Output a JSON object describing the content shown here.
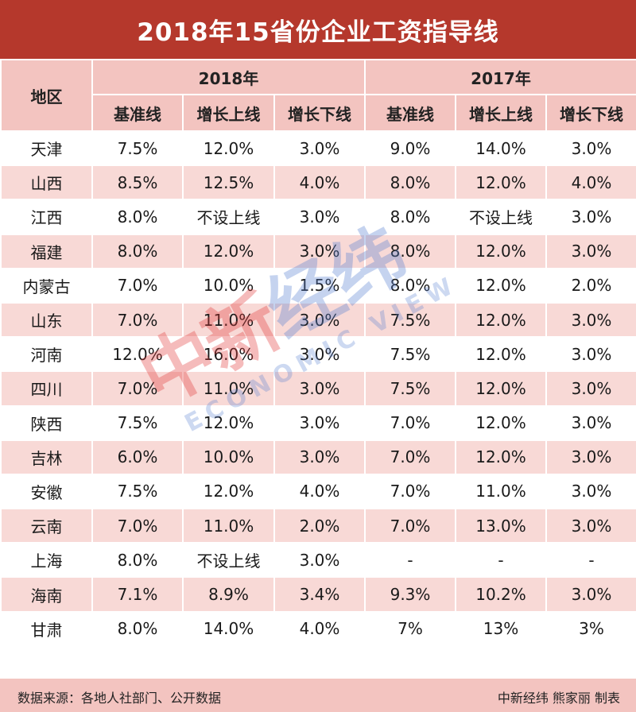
{
  "title": "2018年15省份企业工资指导线",
  "header": {
    "region_label": "地区",
    "years": [
      "2018年",
      "2017年"
    ],
    "subcols": [
      "基准线",
      "增长上线",
      "增长下线",
      "基准线",
      "增长上线",
      "增长下线"
    ]
  },
  "rows": [
    {
      "region": "天津",
      "cells": [
        "7.5%",
        "12.0%",
        "3.0%",
        "9.0%",
        "14.0%",
        "3.0%"
      ]
    },
    {
      "region": "山西",
      "cells": [
        "8.5%",
        "12.5%",
        "4.0%",
        "8.0%",
        "12.0%",
        "4.0%"
      ]
    },
    {
      "region": "江西",
      "cells": [
        "8.0%",
        "不设上线",
        "3.0%",
        "8.0%",
        "不设上线",
        "3.0%"
      ]
    },
    {
      "region": "福建",
      "cells": [
        "8.0%",
        "12.0%",
        "3.0%",
        "8.0%",
        "12.0%",
        "3.0%"
      ]
    },
    {
      "region": "内蒙古",
      "cells": [
        "7.0%",
        "10.0%",
        "1.5%",
        "8.0%",
        "12.0%",
        "2.0%"
      ]
    },
    {
      "region": "山东",
      "cells": [
        "7.0%",
        "11.0%",
        "3.0%",
        "7.5%",
        "12.0%",
        "3.0%"
      ]
    },
    {
      "region": "河南",
      "cells": [
        "12.0%",
        "16.0%",
        "3.0%",
        "7.5%",
        "12.0%",
        "3.0%"
      ]
    },
    {
      "region": "四川",
      "cells": [
        "7.0%",
        "11.0%",
        "3.0%",
        "7.5%",
        "12.0%",
        "3.0%"
      ]
    },
    {
      "region": "陕西",
      "cells": [
        "7.5%",
        "12.0%",
        "3.0%",
        "7.0%",
        "12.0%",
        "3.0%"
      ]
    },
    {
      "region": "吉林",
      "cells": [
        "6.0%",
        "10.0%",
        "3.0%",
        "7.0%",
        "12.0%",
        "3.0%"
      ]
    },
    {
      "region": "安徽",
      "cells": [
        "7.5%",
        "12.0%",
        "4.0%",
        "7.0%",
        "11.0%",
        "3.0%"
      ]
    },
    {
      "region": "云南",
      "cells": [
        "7.0%",
        "11.0%",
        "2.0%",
        "7.0%",
        "13.0%",
        "3.0%"
      ]
    },
    {
      "region": "上海",
      "cells": [
        "8.0%",
        "不设上线",
        "3.0%",
        "-",
        "-",
        "-"
      ]
    },
    {
      "region": "海南",
      "cells": [
        "7.1%",
        "8.9%",
        "3.4%",
        "9.3%",
        "10.2%",
        "3.0%"
      ]
    },
    {
      "region": "甘肃",
      "cells": [
        "8.0%",
        "14.0%",
        "4.0%",
        "7%",
        "13%",
        "3%"
      ]
    }
  ],
  "footer": {
    "source": "数据来源：各地人社部门、公开数据",
    "credit": "中新经纬 熊家丽 制表"
  },
  "watermark": {
    "main_red": "中新",
    "main_blue": "经纬",
    "sub": "ECONOMIC VIEW"
  },
  "colors": {
    "title_bg": "#b5382c",
    "header_bg": "#f3c4c0",
    "stripe_bg": "#f8d9d6"
  }
}
